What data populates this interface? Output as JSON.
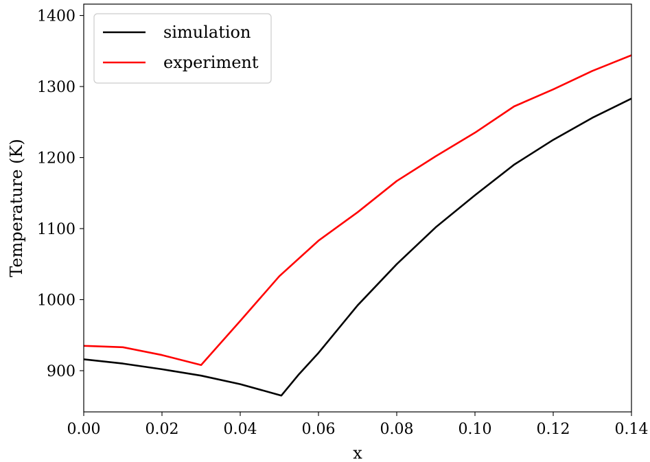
{
  "chart_data": {
    "type": "line",
    "title": "",
    "xlabel": "x",
    "ylabel": "Temperature (K)",
    "xlim": [
      0.0,
      0.14
    ],
    "ylim": [
      842,
      1416
    ],
    "xticks": [
      0.0,
      0.02,
      0.04,
      0.06,
      0.08,
      0.1,
      0.12,
      0.14
    ],
    "xtick_labels": [
      "0.00",
      "0.02",
      "0.04",
      "0.06",
      "0.08",
      "0.10",
      "0.12",
      "0.14"
    ],
    "yticks": [
      900,
      1000,
      1100,
      1200,
      1300,
      1400
    ],
    "ytick_labels": [
      "900",
      "1000",
      "1100",
      "1200",
      "1300",
      "1400"
    ],
    "grid": false,
    "legend_position": "top-left",
    "series": [
      {
        "name": "simulation",
        "color": "#000000",
        "points": [
          [
            0.0,
            916
          ],
          [
            0.01,
            910
          ],
          [
            0.02,
            902
          ],
          [
            0.03,
            893
          ],
          [
            0.04,
            881
          ],
          [
            0.0505,
            865
          ],
          [
            0.055,
            895
          ],
          [
            0.06,
            925
          ],
          [
            0.07,
            992
          ],
          [
            0.08,
            1050
          ],
          [
            0.09,
            1102
          ],
          [
            0.1,
            1147
          ],
          [
            0.11,
            1190
          ],
          [
            0.12,
            1225
          ],
          [
            0.13,
            1256
          ],
          [
            0.14,
            1283
          ]
        ]
      },
      {
        "name": "experiment",
        "color": "#ff0000",
        "points": [
          [
            0.0,
            935
          ],
          [
            0.01,
            933
          ],
          [
            0.02,
            922
          ],
          [
            0.03,
            908
          ],
          [
            0.04,
            970
          ],
          [
            0.05,
            1033
          ],
          [
            0.06,
            1083
          ],
          [
            0.07,
            1123
          ],
          [
            0.08,
            1167
          ],
          [
            0.09,
            1202
          ],
          [
            0.1,
            1235
          ],
          [
            0.11,
            1272
          ],
          [
            0.12,
            1296
          ],
          [
            0.13,
            1322
          ],
          [
            0.14,
            1344
          ]
        ]
      }
    ]
  }
}
